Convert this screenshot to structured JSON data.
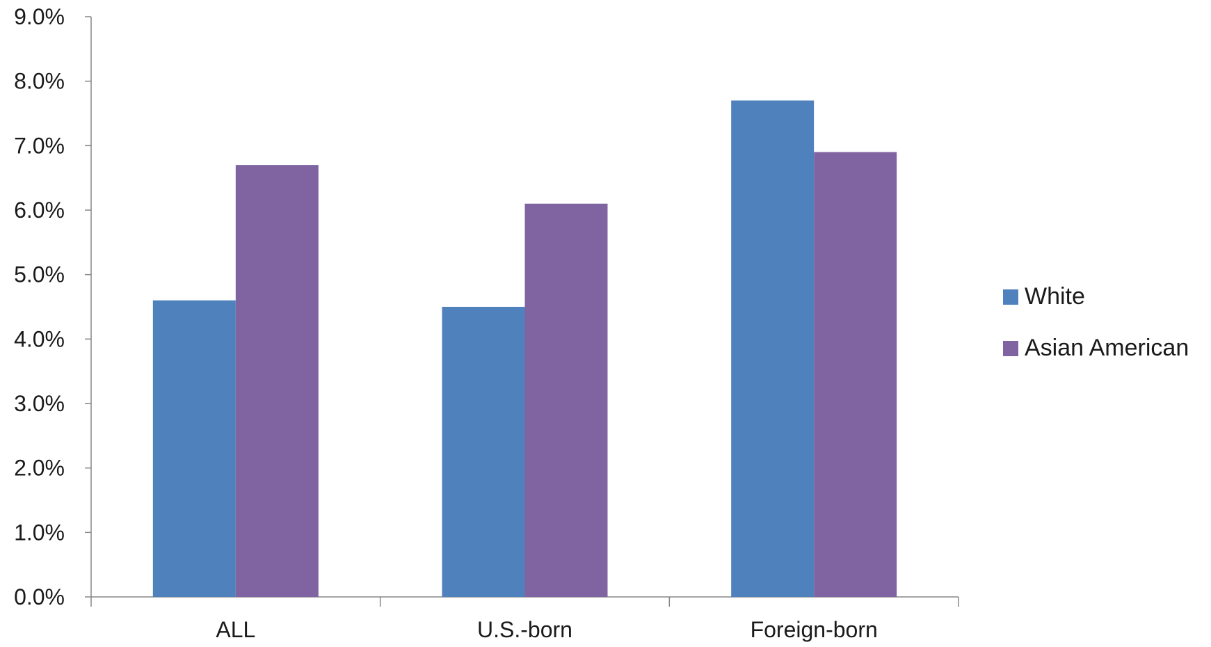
{
  "chart_data": {
    "type": "bar",
    "title": "",
    "xlabel": "",
    "ylabel": "",
    "categories": [
      "ALL",
      "U.S.-born",
      "Foreign-born"
    ],
    "series": [
      {
        "name": "White",
        "values": [
          4.6,
          4.5,
          7.7
        ],
        "color": "#4F81BD"
      },
      {
        "name": "Asian American",
        "values": [
          6.7,
          6.1,
          6.9
        ],
        "color": "#8064A2"
      }
    ],
    "ylim": [
      0,
      9
    ],
    "yticks": [
      0,
      1,
      2,
      3,
      4,
      5,
      6,
      7,
      8,
      9
    ],
    "ytick_labels": [
      "0.0%",
      "1.0%",
      "2.0%",
      "3.0%",
      "4.0%",
      "5.0%",
      "6.0%",
      "7.0%",
      "8.0%",
      "9.0%"
    ],
    "grid": false,
    "legend": {
      "placement": "right",
      "entries": [
        "White",
        "Asian American"
      ]
    },
    "axis_color": "#868686"
  }
}
